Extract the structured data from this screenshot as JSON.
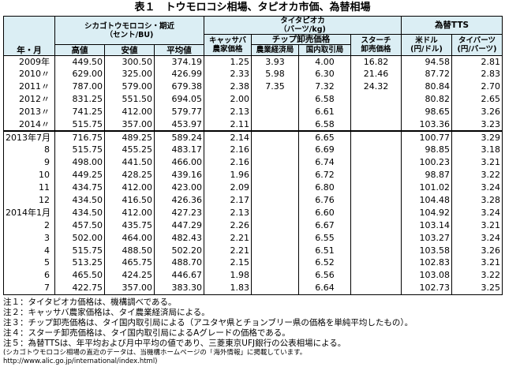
{
  "title": "表１　トウモロコシ相場、タピオカ市価、為替相場",
  "header": {
    "year_month": "年・月",
    "chicago_group": "シカゴトウモロコシ・期近\n（セント/BU)",
    "tapioca_group": "タイタピオカ\n（バーツ/kg)",
    "fx_group": "為替TTS",
    "high": "高値",
    "low": "安値",
    "avg": "平均値",
    "cassava": "キャッサバ\n農家価格",
    "chip_group": "チップ卸売価格",
    "chip_agri": "農業経済局",
    "chip_domestic": "国内取引局",
    "starch": "スターチ\n卸売価格",
    "usd": "米ドル\n(円/ドル)",
    "baht": "タイバーツ\n(円/バーツ)"
  },
  "rows": [
    {
      "label": "2009年",
      "high": "449.50",
      "low": "300.50",
      "avg": "374.19",
      "cassava": "1.25",
      "chip_agri": "3.93",
      "chip_dom": "4.00",
      "starch": "16.82",
      "usd": "94.58",
      "baht": "2.81"
    },
    {
      "label": "2010〃",
      "high": "629.00",
      "low": "325.00",
      "avg": "426.99",
      "cassava": "2.33",
      "chip_agri": "5.98",
      "chip_dom": "6.30",
      "starch": "21.46",
      "usd": "87.72",
      "baht": "2.83"
    },
    {
      "label": "2011〃",
      "high": "787.00",
      "low": "579.00",
      "avg": "679.38",
      "cassava": "2.38",
      "chip_agri": "7.35",
      "chip_dom": "7.32",
      "starch": "24.32",
      "usd": "80.84",
      "baht": "2.70"
    },
    {
      "label": "2012〃",
      "high": "831.25",
      "low": "551.50",
      "avg": "694.05",
      "cassava": "2.00",
      "chip_agri": "",
      "chip_dom": "6.58",
      "starch": "",
      "usd": "80.82",
      "baht": "2.65"
    },
    {
      "label": "2013〃",
      "high": "741.25",
      "low": "412.00",
      "avg": "579.77",
      "cassava": "2.13",
      "chip_agri": "",
      "chip_dom": "6.61",
      "starch": "",
      "usd": "98.65",
      "baht": "3.26"
    },
    {
      "label": "2014〃",
      "high": "515.75",
      "low": "357.00",
      "avg": "453.97",
      "cassava": "2.11",
      "chip_agri": "",
      "chip_dom": "6.58",
      "starch": "",
      "usd": "103.36",
      "baht": "3.23"
    },
    {
      "label": "2013年7月",
      "high": "716.75",
      "low": "489.25",
      "avg": "589.24",
      "cassava": "2.14",
      "chip_agri": "",
      "chip_dom": "6.65",
      "starch": "",
      "usd": "100.77",
      "baht": "3.29"
    },
    {
      "label": "8",
      "high": "515.75",
      "low": "455.25",
      "avg": "483.17",
      "cassava": "2.16",
      "chip_agri": "",
      "chip_dom": "6.69",
      "starch": "",
      "usd": "98.85",
      "baht": "3.18"
    },
    {
      "label": "9",
      "high": "498.00",
      "low": "441.50",
      "avg": "466.00",
      "cassava": "2.16",
      "chip_agri": "",
      "chip_dom": "6.74",
      "starch": "",
      "usd": "100.23",
      "baht": "3.21"
    },
    {
      "label": "10",
      "high": "449.25",
      "low": "428.25",
      "avg": "439.16",
      "cassava": "1.96",
      "chip_agri": "",
      "chip_dom": "6.72",
      "starch": "",
      "usd": "98.87",
      "baht": "3.22"
    },
    {
      "label": "11",
      "high": "434.75",
      "low": "412.00",
      "avg": "423.00",
      "cassava": "2.09",
      "chip_agri": "",
      "chip_dom": "6.80",
      "starch": "",
      "usd": "101.02",
      "baht": "3.24"
    },
    {
      "label": "12",
      "high": "434.50",
      "low": "416.50",
      "avg": "426.36",
      "cassava": "2.17",
      "chip_agri": "",
      "chip_dom": "6.76",
      "starch": "",
      "usd": "104.48",
      "baht": "3.28"
    },
    {
      "label": "2014年1月",
      "high": "434.50",
      "low": "412.00",
      "avg": "427.23",
      "cassava": "2.13",
      "chip_agri": "",
      "chip_dom": "6.60",
      "starch": "",
      "usd": "104.92",
      "baht": "3.24"
    },
    {
      "label": "2",
      "high": "457.50",
      "low": "435.75",
      "avg": "447.29",
      "cassava": "2.26",
      "chip_agri": "",
      "chip_dom": "6.67",
      "starch": "",
      "usd": "103.14",
      "baht": "3.21"
    },
    {
      "label": "3",
      "high": "502.00",
      "low": "464.00",
      "avg": "482.43",
      "cassava": "2.21",
      "chip_agri": "",
      "chip_dom": "6.55",
      "starch": "",
      "usd": "103.27",
      "baht": "3.24"
    },
    {
      "label": "4",
      "high": "515.75",
      "low": "488.50",
      "avg": "502.20",
      "cassava": "2.21",
      "chip_agri": "",
      "chip_dom": "6.51",
      "starch": "",
      "usd": "103.58",
      "baht": "3.26"
    },
    {
      "label": "5",
      "high": "513.25",
      "low": "465.75",
      "avg": "488.70",
      "cassava": "2.15",
      "chip_agri": "",
      "chip_dom": "6.52",
      "starch": "",
      "usd": "102.83",
      "baht": "3.21"
    },
    {
      "label": "6",
      "high": "465.50",
      "low": "424.25",
      "avg": "446.67",
      "cassava": "1.98",
      "chip_agri": "",
      "chip_dom": "6.56",
      "starch": "",
      "usd": "103.08",
      "baht": "3.22"
    },
    {
      "label": "7",
      "high": "422.75",
      "low": "357.00",
      "avg": "383.30",
      "cassava": "1.83",
      "chip_agri": "",
      "chip_dom": "6.64",
      "starch": "",
      "usd": "102.73",
      "baht": "3.25"
    }
  ],
  "notes": [
    "注１：タイタピオカ価格は、機構調べである。",
    "注２：キャッサバ農家価格は、タイ農業経済局による。",
    "注３：チップ卸売価格は、タイ国内取引局による（アユタヤ県とチョンブリー県の価格を単純平均したもの）。",
    "注４：スターチ卸売価格は、タイ国内取引局によるAグレードの価格である。",
    "注５：為替TTSは、年平均および月中平均の値であり、三菱東京UFJ銀行の公表相場による。"
  ],
  "source_line1": "(シカゴトウモロコシ相場の直近のデータは、当機構ホームページの「海外情報」に掲載しています。",
  "source_line2": "http://www.alic.go.jp/international/index.html)"
}
